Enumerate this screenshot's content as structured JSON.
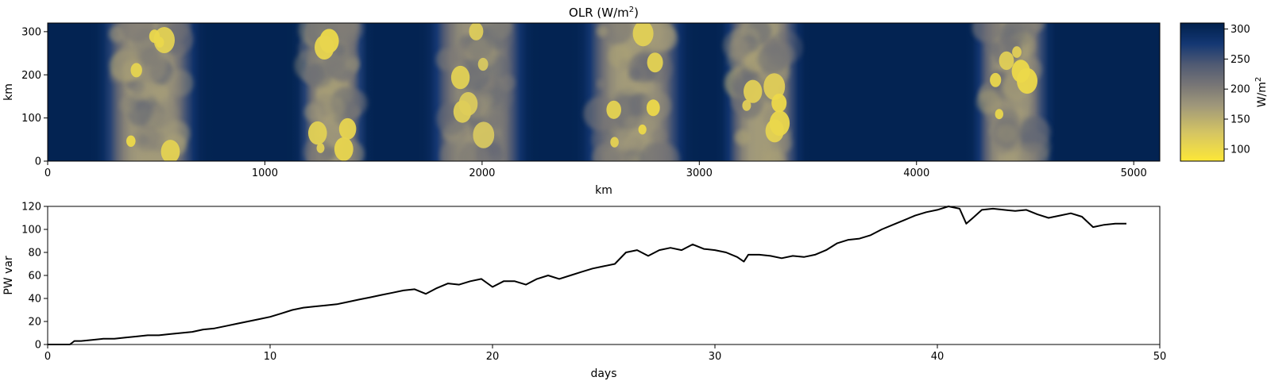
{
  "chart_data": [
    {
      "type": "heatmap",
      "title": "OLR (W/m²)",
      "title_main": "OLR (W/m",
      "title_sup": "2",
      "title_end": ")",
      "xlabel": "km",
      "ylabel": "km",
      "xlim": [
        0,
        5120
      ],
      "ylim": [
        0,
        320
      ],
      "xticks": [
        0,
        1000,
        2000,
        3000,
        4000,
        5000
      ],
      "yticks": [
        0,
        100,
        200,
        300
      ],
      "colorbar": {
        "label_main": "W/m",
        "label_sup": "2",
        "range": [
          80,
          310
        ],
        "ticks": [
          100,
          150,
          200,
          250,
          300
        ],
        "colormap": "cividis_r",
        "low_color": "#fde737",
        "high_color": "#00204c"
      },
      "convective_bands": [
        {
          "x_center": 470,
          "x_halfwidth": 230,
          "min_olr": 100
        },
        {
          "x_center": 1310,
          "x_halfwidth": 160,
          "min_olr": 100
        },
        {
          "x_center": 1980,
          "x_halfwidth": 230,
          "min_olr": 110
        },
        {
          "x_center": 2700,
          "x_halfwidth": 240,
          "min_olr": 100
        },
        {
          "x_center": 3290,
          "x_halfwidth": 180,
          "min_olr": 100
        },
        {
          "x_center": 4440,
          "x_halfwidth": 180,
          "min_olr": 100
        }
      ]
    },
    {
      "type": "line",
      "xlabel": "days",
      "ylabel": "PW var",
      "xlim": [
        0,
        50
      ],
      "ylim": [
        0,
        120
      ],
      "xticks": [
        0,
        10,
        20,
        30,
        40,
        50
      ],
      "yticks": [
        0,
        20,
        40,
        60,
        80,
        100,
        120
      ],
      "series": [
        {
          "color": "#000000",
          "x": [
            0,
            1,
            1.2,
            1.5,
            2,
            2.5,
            3,
            3.5,
            4,
            4.5,
            5,
            5.5,
            6,
            6.5,
            7,
            7.5,
            8,
            8.5,
            9,
            9.5,
            10,
            10.5,
            11,
            11.5,
            12,
            12.5,
            13,
            13.5,
            14,
            14.5,
            15,
            15.5,
            16,
            16.5,
            17,
            17.5,
            18,
            18.5,
            19,
            19.5,
            20,
            20.5,
            21,
            21.5,
            22,
            22.5,
            23,
            23.5,
            24,
            24.5,
            25,
            25.5,
            26,
            26.5,
            27,
            27.5,
            28,
            28.5,
            29,
            29.5,
            30,
            30.5,
            31,
            31.3,
            31.5,
            32,
            32.5,
            33,
            33.5,
            34,
            34.5,
            35,
            35.5,
            36,
            36.5,
            37,
            37.5,
            38,
            38.5,
            39,
            39.5,
            40,
            40.5,
            41,
            41.3,
            41.6,
            42,
            42.5,
            43,
            43.5,
            44,
            44.5,
            45,
            45.5,
            46,
            46.5,
            47,
            47.5,
            48,
            48.5
          ],
          "y": [
            0,
            0,
            3,
            3,
            4,
            5,
            5,
            6,
            7,
            8,
            8,
            9,
            10,
            11,
            13,
            14,
            16,
            18,
            20,
            22,
            24,
            27,
            30,
            32,
            33,
            34,
            35,
            37,
            39,
            41,
            43,
            45,
            47,
            48,
            44,
            49,
            53,
            52,
            55,
            57,
            50,
            55,
            55,
            52,
            57,
            60,
            57,
            60,
            63,
            66,
            68,
            70,
            80,
            82,
            77,
            82,
            84,
            82,
            87,
            83,
            82,
            80,
            76,
            72,
            78,
            78,
            77,
            75,
            77,
            76,
            78,
            82,
            88,
            91,
            92,
            95,
            100,
            104,
            108,
            112,
            115,
            117,
            120,
            118,
            105,
            110,
            117,
            118,
            117,
            116,
            117,
            113,
            110,
            112,
            114,
            111,
            102,
            104,
            105,
            105
          ]
        }
      ]
    }
  ]
}
